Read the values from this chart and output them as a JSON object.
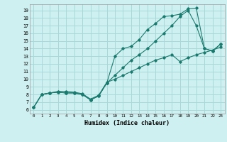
{
  "xlabel": "Humidex (Indice chaleur)",
  "bg_color": "#cff0f0",
  "line_color": "#1a7a6e",
  "grid_color": "#a8d8d8",
  "xlim": [
    -0.5,
    23.5
  ],
  "ylim": [
    5.5,
    19.8
  ],
  "xticks": [
    0,
    1,
    2,
    3,
    4,
    5,
    6,
    7,
    8,
    9,
    10,
    11,
    12,
    13,
    14,
    15,
    16,
    17,
    18,
    19,
    20,
    21,
    22,
    23
  ],
  "yticks": [
    6,
    7,
    8,
    9,
    10,
    11,
    12,
    13,
    14,
    15,
    16,
    17,
    18,
    19
  ],
  "line1_x": [
    0,
    1,
    2,
    3,
    4,
    5,
    6,
    7,
    8,
    9,
    10,
    11,
    12,
    13,
    14,
    15,
    16,
    17,
    18,
    19,
    20,
    21,
    22,
    23
  ],
  "line1_y": [
    6.3,
    8.0,
    8.2,
    8.3,
    8.2,
    8.2,
    8.0,
    7.3,
    7.8,
    9.5,
    13.0,
    14.0,
    14.3,
    15.2,
    16.5,
    17.3,
    18.2,
    18.3,
    18.5,
    19.2,
    19.3,
    14.0,
    13.7,
    14.6
  ],
  "line2_x": [
    0,
    1,
    2,
    3,
    4,
    5,
    6,
    7,
    8,
    9,
    10,
    11,
    12,
    13,
    14,
    15,
    16,
    17,
    18,
    19,
    20,
    21,
    22,
    23
  ],
  "line2_y": [
    6.3,
    8.0,
    8.2,
    8.3,
    8.2,
    8.2,
    8.0,
    7.3,
    7.8,
    9.5,
    10.5,
    11.5,
    12.5,
    13.2,
    14.0,
    15.0,
    16.0,
    17.0,
    18.2,
    19.0,
    17.0,
    14.0,
    13.7,
    14.6
  ],
  "line3_x": [
    0,
    1,
    2,
    3,
    4,
    5,
    6,
    7,
    8,
    9,
    10,
    11,
    12,
    13,
    14,
    15,
    16,
    17,
    18,
    19,
    20,
    21,
    22,
    23
  ],
  "line3_y": [
    6.3,
    8.0,
    8.2,
    8.4,
    8.4,
    8.3,
    8.1,
    7.4,
    7.9,
    9.6,
    10.0,
    10.5,
    11.0,
    11.5,
    12.0,
    12.5,
    12.8,
    13.2,
    12.3,
    12.8,
    13.2,
    13.5,
    13.8,
    14.2
  ]
}
